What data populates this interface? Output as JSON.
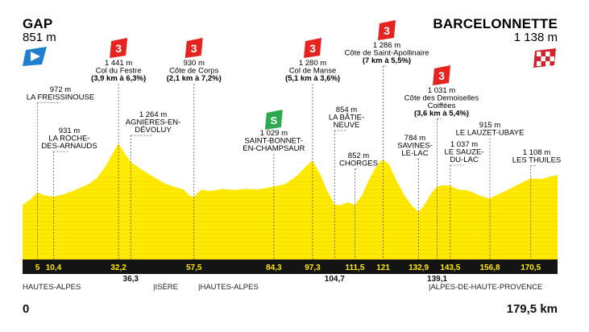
{
  "start": {
    "name": "GAP",
    "altitude": "851 m",
    "distance": "0"
  },
  "finish": {
    "name": "BARCELONNETTE",
    "altitude": "1 138 m",
    "distance": "179,5 km"
  },
  "points": [
    {
      "km": 5,
      "km_label": "5",
      "alt": 972,
      "lines": [
        "972 m",
        "LA FREISSINOUSE"
      ]
    },
    {
      "km": 10.4,
      "km_label": "10,4",
      "alt": 931,
      "lines": [
        "931 m",
        "LA ROCHE-",
        "DES-ARNAUDS"
      ]
    },
    {
      "km": 32.2,
      "km_label": "32,2",
      "alt": 1441,
      "climb": "3",
      "lines": [
        "1 441 m",
        "Col du Festre"
      ],
      "detail": "(3,9 km à 6,3%)"
    },
    {
      "km": 36.3,
      "km_label": "36,3",
      "alt": 1264,
      "lines": [
        "1 264 m",
        "AGNIÈRES-EN-",
        "DÉVOLUY"
      ]
    },
    {
      "km": 57.5,
      "km_label": "57,5",
      "alt": 930,
      "climb": "3",
      "lines": [
        "930 m",
        "Côte de Corps"
      ],
      "detail": "(2,1 km à 7,2%)"
    },
    {
      "km": 84.3,
      "km_label": "84,3",
      "alt": 1029,
      "sprint": "S",
      "lines": [
        "1 029 m",
        "SAINT-BONNET-",
        "EN-CHAMPSAUR"
      ]
    },
    {
      "km": 97.3,
      "km_label": "97,3",
      "alt": 1280,
      "climb": "3",
      "lines": [
        "1 280 m",
        "Col de Manse"
      ],
      "detail": "(5,1 km à 3,6%)"
    },
    {
      "km": 104.7,
      "km_label": "104,7",
      "alt": 854,
      "lines": [
        "854 m",
        "LA BÂTIE-",
        "NEUVE"
      ]
    },
    {
      "km": 111.5,
      "km_label": "111,5",
      "alt": 852,
      "lines": [
        "852 m",
        "CHORGES"
      ]
    },
    {
      "km": 121,
      "km_label": "121",
      "alt": 1286,
      "climb": "3",
      "lines": [
        "1 286 m",
        "Côte de Saint-Apollinaire"
      ],
      "detail": "(7 km à 5,5%)"
    },
    {
      "km": 132.9,
      "km_label": "132,9",
      "alt": 784,
      "lines": [
        "784 m",
        "SAVINES-",
        "LE-LAC"
      ]
    },
    {
      "km": 139.1,
      "km_label": "139,1",
      "alt": 1031,
      "climb": "3",
      "lines": [
        "1 031 m",
        "Côte des Demoiselles",
        "Coiffées"
      ],
      "detail": "(3,6 km à 5,4%)"
    },
    {
      "km": 143.5,
      "km_label": "143,5",
      "alt": 1037,
      "lines": [
        "1 037 m",
        "LE SAUZE-",
        "DU-LAC"
      ]
    },
    {
      "km": 156.8,
      "km_label": "156,8",
      "alt": 915,
      "lines": [
        "915 m",
        "LE LAUZET-UBAYE"
      ]
    },
    {
      "km": 170.5,
      "km_label": "170,5",
      "alt": 1108,
      "lines": [
        "1 108 m",
        "LES THUILES"
      ]
    }
  ],
  "regions": [
    "HAUTES-ALPES",
    "|ISÈRE",
    "|HAUTES-ALPES",
    "|ALPES-DE-HAUTE-PROVENCE"
  ],
  "colors": {
    "profile": "#ffea00",
    "climb": "#e52420",
    "sprint": "#2fa84f",
    "start_flag": "#1f7fd1",
    "band": "#141414"
  },
  "icons": {
    "start": "start-flag-icon",
    "finish": "finish-flag-icon",
    "climb": "climb-category-icon",
    "sprint": "sprint-icon"
  }
}
